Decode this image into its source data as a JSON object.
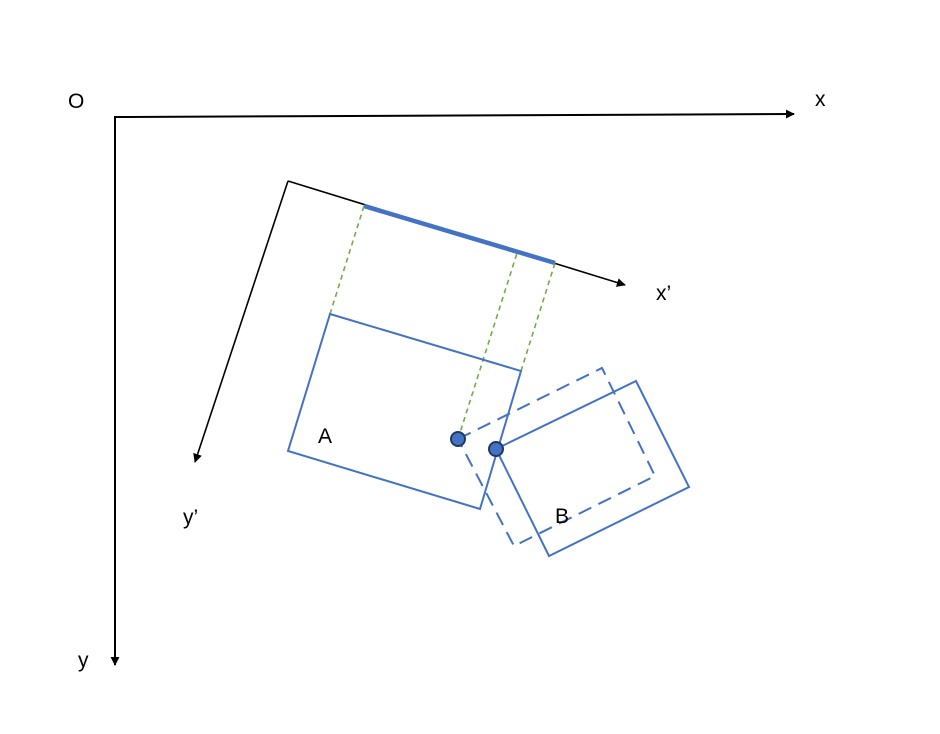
{
  "labels": {
    "origin": "O",
    "x_axis": "x",
    "y_axis": "y",
    "x_prime_axis": "x’",
    "y_prime_axis": "y’",
    "box_a": "A",
    "box_b": "B"
  },
  "colors": {
    "axis": "#000000",
    "box": "#4472c4",
    "projection": "#70ad47",
    "point_fill": "#4472c4",
    "point_stroke": "#1f3864"
  }
}
